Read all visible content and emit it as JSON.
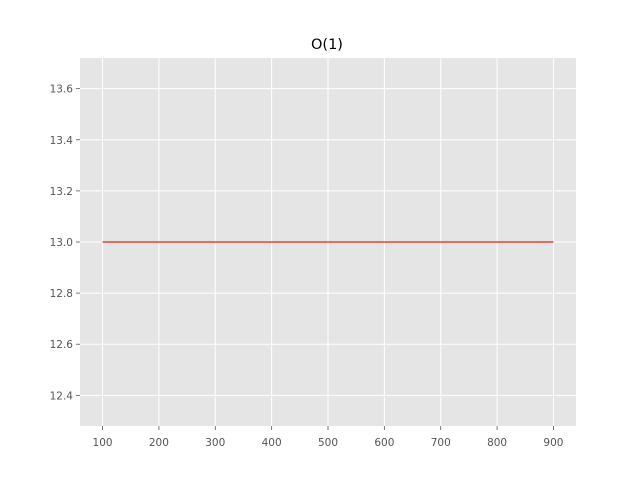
{
  "chart_data": {
    "type": "line",
    "title": "O(1)",
    "xlabel": "",
    "ylabel": "",
    "xlim": [
      60,
      940
    ],
    "ylim": [
      12.28,
      13.72
    ],
    "x_ticks": [
      100,
      200,
      300,
      400,
      500,
      600,
      700,
      800,
      900
    ],
    "y_ticks": [
      12.4,
      12.6,
      12.8,
      13.0,
      13.2,
      13.4,
      13.6
    ],
    "y_tick_labels": [
      "12.4",
      "12.6",
      "12.8",
      "13.0",
      "13.2",
      "13.4",
      "13.6"
    ],
    "grid": true,
    "series": [
      {
        "color": "#E24A33",
        "x": [
          100,
          200,
          300,
          400,
          500,
          600,
          700,
          800,
          900
        ],
        "y": [
          13,
          13,
          13,
          13,
          13,
          13,
          13,
          13,
          13
        ]
      }
    ]
  },
  "colors": {
    "plot_background": "#E5E5E5",
    "grid": "#FFFFFF",
    "tick_label": "#555555",
    "line": "#E24A33"
  }
}
